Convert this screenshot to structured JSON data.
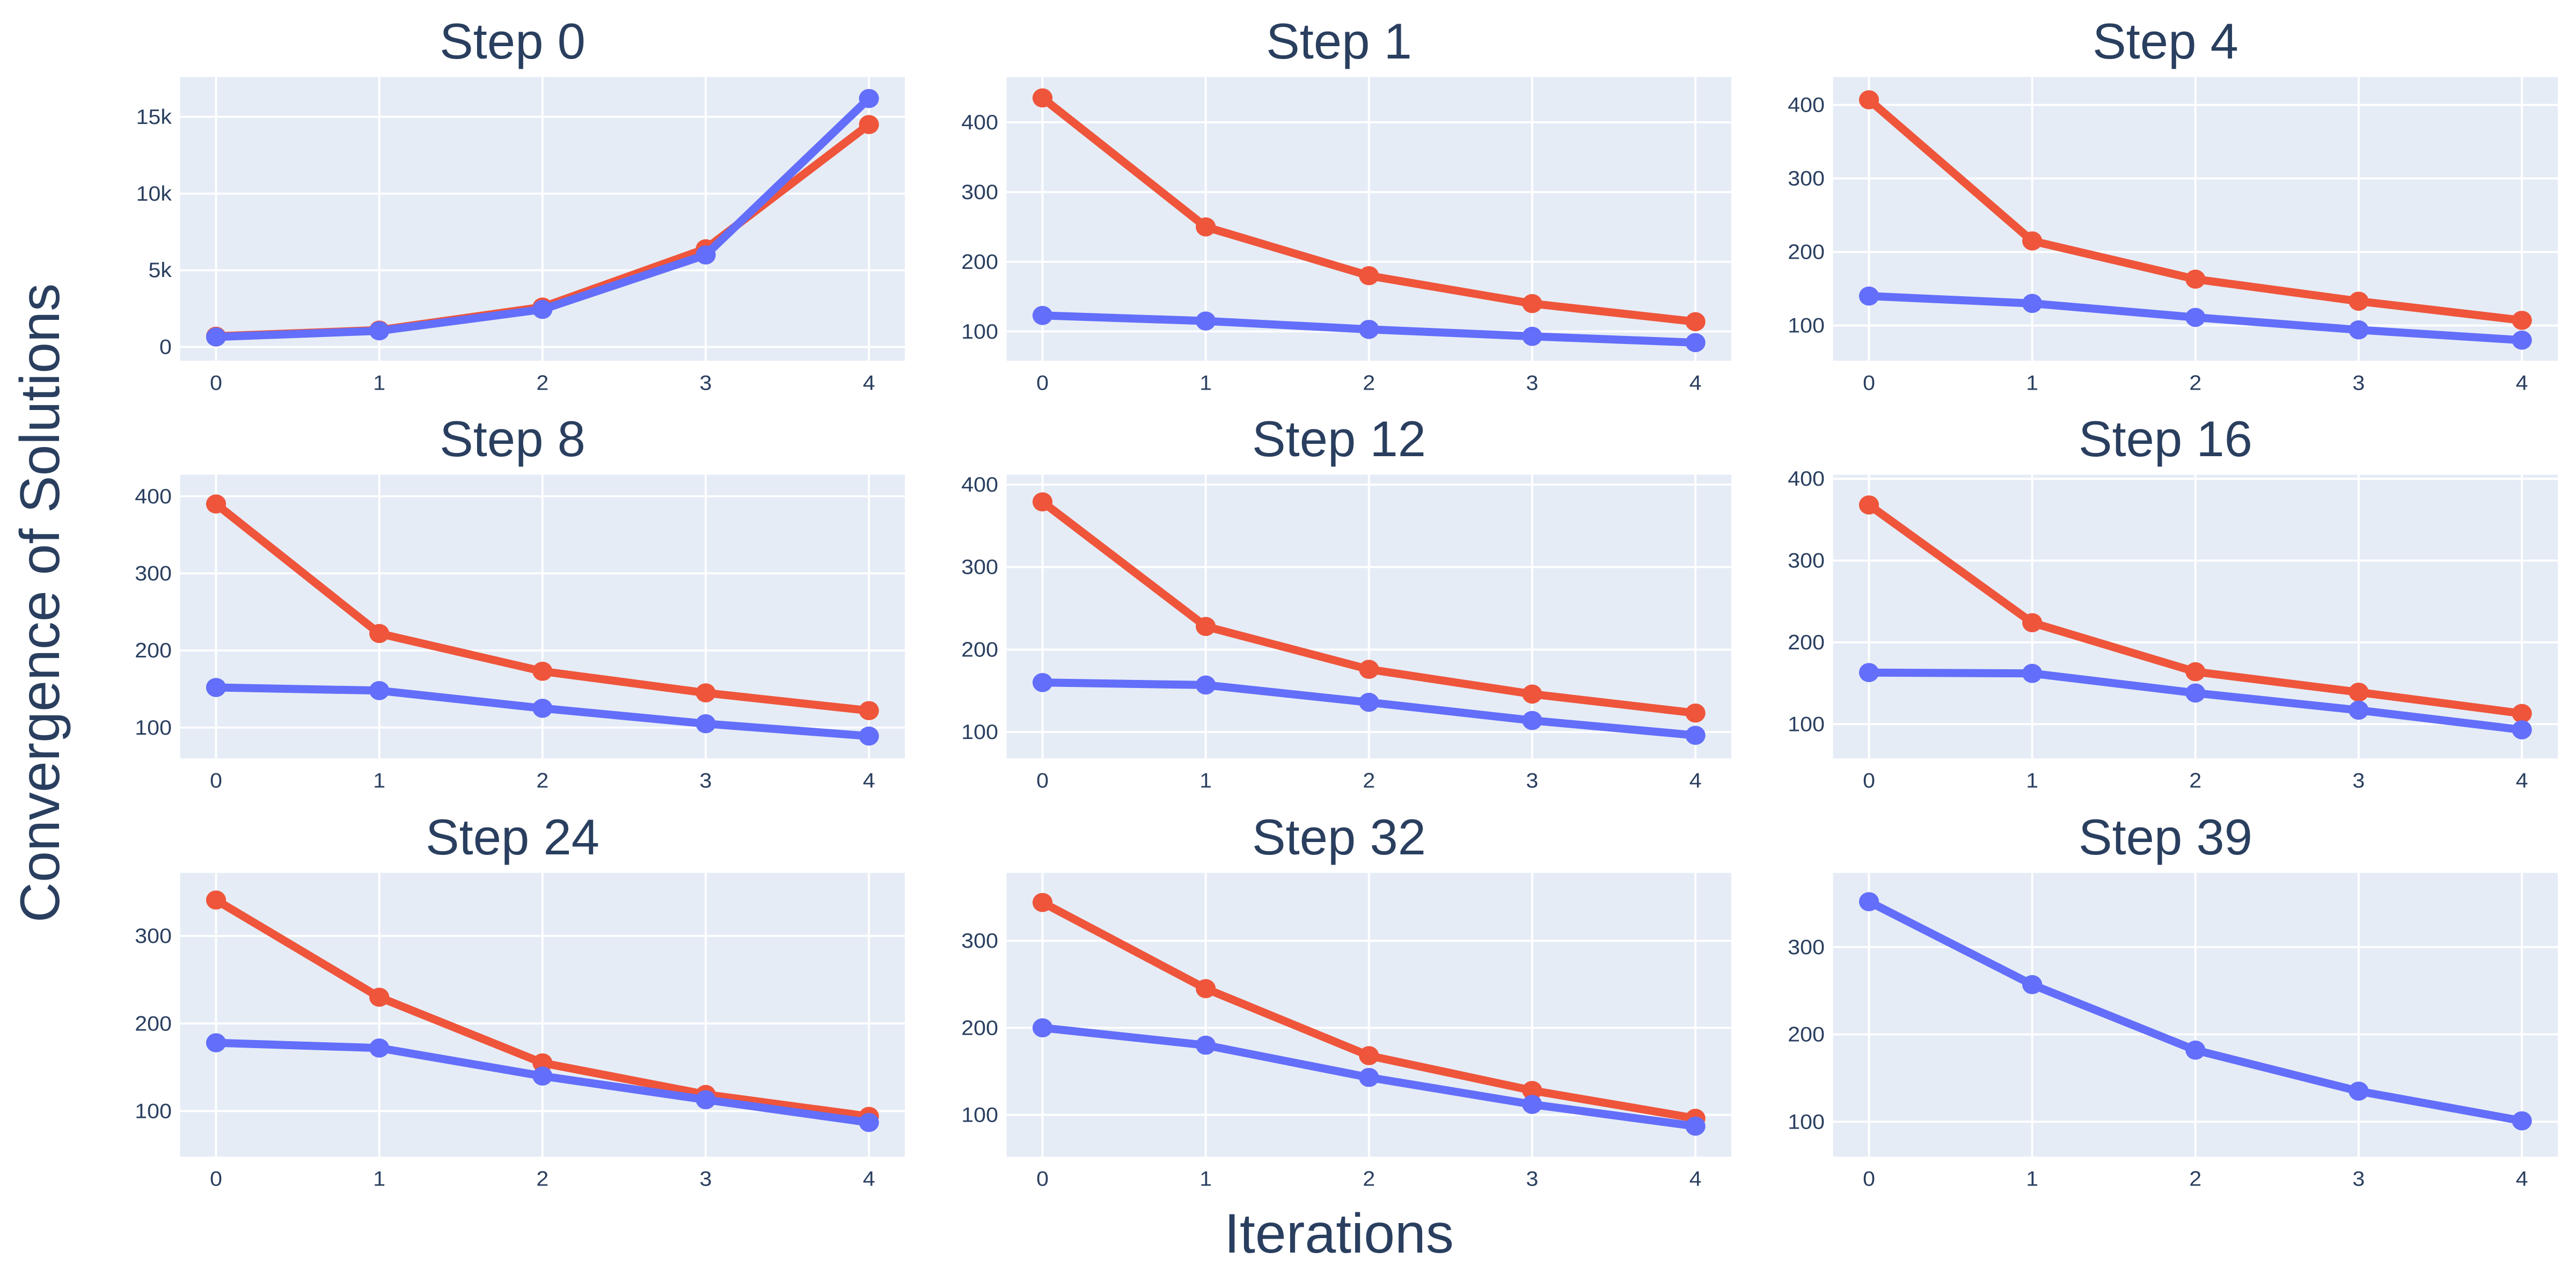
{
  "page": {
    "ylabel": "Convergence of Solutions",
    "xlabel": "Iterations"
  },
  "colors": {
    "series_red": "#EF553B",
    "series_blue": "#636EFA",
    "plot_background": "#E5ECF6",
    "gridline": "#FFFFFF",
    "text": "#2a3f5f"
  },
  "chart_data": [
    {
      "type": "line",
      "title": "Step 0",
      "x": [
        0,
        1,
        2,
        3,
        4
      ],
      "xlim": [
        -0.22,
        4.22
      ],
      "ylim": [
        -900,
        17600
      ],
      "ytick_vals": [
        0,
        5000,
        10000,
        15000
      ],
      "ytick_labels": [
        "0",
        "5k",
        "10k",
        "15k"
      ],
      "xtick_labels": [
        "0",
        "1",
        "2",
        "3",
        "4"
      ],
      "grid": true,
      "legend": "none",
      "series": [
        {
          "color": "#EF553B",
          "values": [
            700,
            1100,
            2600,
            6400,
            14500
          ]
        },
        {
          "color": "#636EFA",
          "values": [
            650,
            1050,
            2450,
            6000,
            16200
          ]
        }
      ]
    },
    {
      "type": "line",
      "title": "Step 1",
      "x": [
        0,
        1,
        2,
        3,
        4
      ],
      "xlim": [
        -0.22,
        4.22
      ],
      "ylim": [
        58,
        465
      ],
      "ytick_vals": [
        100,
        200,
        300,
        400
      ],
      "ytick_labels": [
        "100",
        "200",
        "300",
        "400"
      ],
      "xtick_labels": [
        "0",
        "1",
        "2",
        "3",
        "4"
      ],
      "grid": true,
      "legend": "none",
      "series": [
        {
          "color": "#EF553B",
          "values": [
            435,
            250,
            180,
            140,
            114
          ]
        },
        {
          "color": "#636EFA",
          "values": [
            123,
            115,
            103,
            93,
            84
          ]
        }
      ]
    },
    {
      "type": "line",
      "title": "Step 4",
      "x": [
        0,
        1,
        2,
        3,
        4
      ],
      "xlim": [
        -0.22,
        4.22
      ],
      "ylim": [
        52,
        438
      ],
      "ytick_vals": [
        100,
        200,
        300,
        400
      ],
      "ytick_labels": [
        "100",
        "200",
        "300",
        "400"
      ],
      "xtick_labels": [
        "0",
        "1",
        "2",
        "3",
        "4"
      ],
      "grid": true,
      "legend": "none",
      "series": [
        {
          "color": "#EF553B",
          "values": [
            407,
            215,
            163,
            133,
            107
          ]
        },
        {
          "color": "#636EFA",
          "values": [
            140,
            130,
            111,
            94,
            80
          ]
        }
      ]
    },
    {
      "type": "line",
      "title": "Step 8",
      "x": [
        0,
        1,
        2,
        3,
        4
      ],
      "xlim": [
        -0.22,
        4.22
      ],
      "ylim": [
        60,
        428
      ],
      "ytick_vals": [
        100,
        200,
        300,
        400
      ],
      "ytick_labels": [
        "100",
        "200",
        "300",
        "400"
      ],
      "xtick_labels": [
        "0",
        "1",
        "2",
        "3",
        "4"
      ],
      "grid": true,
      "legend": "none",
      "series": [
        {
          "color": "#EF553B",
          "values": [
            390,
            222,
            173,
            145,
            122
          ]
        },
        {
          "color": "#636EFA",
          "values": [
            152,
            148,
            125,
            105,
            89
          ]
        }
      ]
    },
    {
      "type": "line",
      "title": "Step 12",
      "x": [
        0,
        1,
        2,
        3,
        4
      ],
      "xlim": [
        -0.22,
        4.22
      ],
      "ylim": [
        68,
        412
      ],
      "ytick_vals": [
        100,
        200,
        300,
        400
      ],
      "ytick_labels": [
        "100",
        "200",
        "300",
        "400"
      ],
      "xtick_labels": [
        "0",
        "1",
        "2",
        "3",
        "4"
      ],
      "grid": true,
      "legend": "none",
      "series": [
        {
          "color": "#EF553B",
          "values": [
            379,
            228,
            176,
            146,
            123
          ]
        },
        {
          "color": "#636EFA",
          "values": [
            160,
            157,
            136,
            114,
            96
          ]
        }
      ]
    },
    {
      "type": "line",
      "title": "Step 16",
      "x": [
        0,
        1,
        2,
        3,
        4
      ],
      "xlim": [
        -0.22,
        4.22
      ],
      "ylim": [
        58,
        405
      ],
      "ytick_vals": [
        100,
        200,
        300,
        400
      ],
      "ytick_labels": [
        "100",
        "200",
        "300",
        "400"
      ],
      "xtick_labels": [
        "0",
        "1",
        "2",
        "3",
        "4"
      ],
      "grid": true,
      "legend": "none",
      "series": [
        {
          "color": "#EF553B",
          "values": [
            368,
            224,
            164,
            139,
            113
          ]
        },
        {
          "color": "#636EFA",
          "values": [
            163,
            162,
            138,
            117,
            93
          ]
        }
      ]
    },
    {
      "type": "line",
      "title": "Step 24",
      "x": [
        0,
        1,
        2,
        3,
        4
      ],
      "xlim": [
        -0.22,
        4.22
      ],
      "ylim": [
        48,
        372
      ],
      "ytick_vals": [
        100,
        200,
        300
      ],
      "ytick_labels": [
        "100",
        "200",
        "300"
      ],
      "xtick_labels": [
        "0",
        "1",
        "2",
        "3",
        "4"
      ],
      "grid": true,
      "legend": "none",
      "series": [
        {
          "color": "#EF553B",
          "values": [
            341,
            230,
            155,
            119,
            94
          ]
        },
        {
          "color": "#636EFA",
          "values": [
            178,
            172,
            140,
            113,
            87
          ]
        }
      ]
    },
    {
      "type": "line",
      "title": "Step 32",
      "x": [
        0,
        1,
        2,
        3,
        4
      ],
      "xlim": [
        -0.22,
        4.22
      ],
      "ylim": [
        52,
        378
      ],
      "ytick_vals": [
        100,
        200,
        300
      ],
      "ytick_labels": [
        "100",
        "200",
        "300"
      ],
      "xtick_labels": [
        "0",
        "1",
        "2",
        "3",
        "4"
      ],
      "grid": true,
      "legend": "none",
      "series": [
        {
          "color": "#EF553B",
          "values": [
            344,
            245,
            168,
            128,
            96
          ]
        },
        {
          "color": "#636EFA",
          "values": [
            200,
            180,
            143,
            112,
            87
          ]
        }
      ]
    },
    {
      "type": "line",
      "title": "Step 39",
      "x": [
        0,
        1,
        2,
        3,
        4
      ],
      "xlim": [
        -0.22,
        4.22
      ],
      "ylim": [
        60,
        385
      ],
      "ytick_vals": [
        100,
        200,
        300
      ],
      "ytick_labels": [
        "100",
        "200",
        "300"
      ],
      "xtick_labels": [
        "0",
        "1",
        "2",
        "3",
        "4"
      ],
      "grid": true,
      "legend": "none",
      "series": [
        {
          "color": "#636EFA",
          "values": [
            352,
            257,
            182,
            135,
            101
          ]
        }
      ]
    }
  ]
}
